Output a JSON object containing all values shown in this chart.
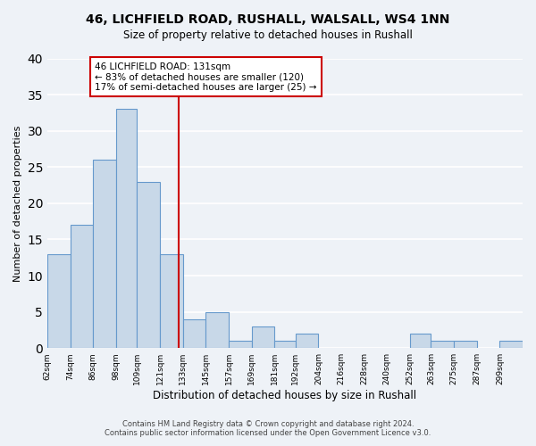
{
  "title": "46, LICHFIELD ROAD, RUSHALL, WALSALL, WS4 1NN",
  "subtitle": "Size of property relative to detached houses in Rushall",
  "xlabel": "Distribution of detached houses by size in Rushall",
  "ylabel": "Number of detached properties",
  "bar_edges": [
    62,
    74,
    86,
    98,
    109,
    121,
    133,
    145,
    157,
    169,
    181,
    192,
    204,
    216,
    228,
    240,
    252,
    263,
    275,
    287,
    299,
    311
  ],
  "bar_heights": [
    13,
    17,
    26,
    33,
    23,
    13,
    4,
    5,
    1,
    3,
    1,
    2,
    0,
    0,
    0,
    0,
    2,
    1,
    1,
    0,
    1
  ],
  "bar_color": "#c8d8e8",
  "bar_edge_color": "#6699cc",
  "property_line_x": 131,
  "annotation_title": "46 LICHFIELD ROAD: 131sqm",
  "annotation_line1": "← 83% of detached houses are smaller (120)",
  "annotation_line2": "17% of semi-detached houses are larger (25) →",
  "annotation_box_color": "#ffffff",
  "annotation_box_edge": "#cc0000",
  "line_color": "#cc0000",
  "ylim": [
    0,
    40
  ],
  "yticks": [
    0,
    5,
    10,
    15,
    20,
    25,
    30,
    35,
    40
  ],
  "tick_labels": [
    "62sqm",
    "74sqm",
    "86sqm",
    "98sqm",
    "109sqm",
    "121sqm",
    "133sqm",
    "145sqm",
    "157sqm",
    "169sqm",
    "181sqm",
    "192sqm",
    "204sqm",
    "216sqm",
    "228sqm",
    "240sqm",
    "252sqm",
    "263sqm",
    "275sqm",
    "287sqm",
    "299sqm"
  ],
  "footer_line1": "Contains HM Land Registry data © Crown copyright and database right 2024.",
  "footer_line2": "Contains public sector information licensed under the Open Government Licence v3.0.",
  "bg_color": "#eef2f7",
  "grid_color": "#ffffff"
}
